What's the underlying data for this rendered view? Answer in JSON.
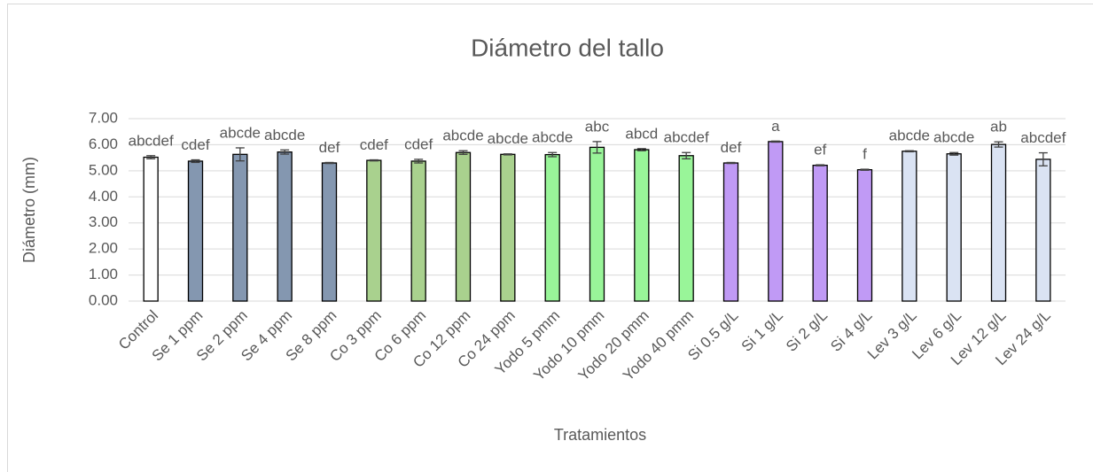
{
  "chart_data": {
    "type": "bar",
    "title": "Diámetro del tallo",
    "x_label": "Tratamientos",
    "y_label": "Diámetro (mm)",
    "categories": [
      "Control",
      "Se 1 ppm",
      "Se 2 ppm",
      "Se 4 ppm",
      "Se 8 ppm",
      "Co 3 ppm",
      "Co 6 ppm",
      "Co 12 ppm",
      "Co 24 ppm",
      "Yodo 5 pmm",
      "Yodo 10 pmm",
      "Yodo 20 pmm",
      "Yodo 40 pmm",
      "Si 0.5 g/L",
      "Si 1 g/L",
      "Si 2 g/L",
      "Si 4 g/L",
      "Lev 3 g/L",
      "Lev 6 g/L",
      "Lev 12 g/L",
      "Lev 24 g/L"
    ],
    "values": [
      5.52,
      5.37,
      5.63,
      5.72,
      5.3,
      5.4,
      5.37,
      5.7,
      5.63,
      5.62,
      5.9,
      5.81,
      5.58,
      5.3,
      6.12,
      5.21,
      5.04,
      5.75,
      5.65,
      6.01,
      5.44
    ],
    "errors": [
      0.06,
      0.05,
      0.25,
      0.08,
      0.02,
      0.02,
      0.07,
      0.07,
      0.02,
      0.08,
      0.22,
      0.04,
      0.12,
      0.02,
      0.02,
      0.02,
      0.02,
      0.02,
      0.05,
      0.1,
      0.25
    ],
    "annotations": [
      "abcdef",
      "cdef",
      "abcde",
      "abcde",
      "def",
      "cdef",
      "cdef",
      "abcde",
      "abcde",
      "abcde",
      "abc",
      "abcd",
      "abcdef",
      "def",
      "a",
      "ef",
      "f",
      "abcde",
      "abcde",
      "ab",
      "abcdef"
    ],
    "colors": [
      "#ffffff",
      "#8497b0",
      "#8497b0",
      "#8497b0",
      "#8497b0",
      "#a9d18e",
      "#a9d18e",
      "#a9d18e",
      "#a9d18e",
      "#99f599",
      "#99f599",
      "#99f599",
      "#99f599",
      "#c09af5",
      "#c09af5",
      "#c09af5",
      "#c09af5",
      "#dae3f3",
      "#dae3f3",
      "#dae3f3",
      "#dae3f3"
    ],
    "ylim": [
      0,
      7
    ],
    "yticks": [
      {
        "value": 0,
        "label": "0.00"
      },
      {
        "value": 1,
        "label": "1.00"
      },
      {
        "value": 2,
        "label": "2.00"
      },
      {
        "value": 3,
        "label": "3.00"
      },
      {
        "value": 4,
        "label": "4.00"
      },
      {
        "value": 5,
        "label": "5.00"
      },
      {
        "value": 6,
        "label": "6.00"
      },
      {
        "value": 7,
        "label": "7.00"
      }
    ],
    "grid": true
  }
}
